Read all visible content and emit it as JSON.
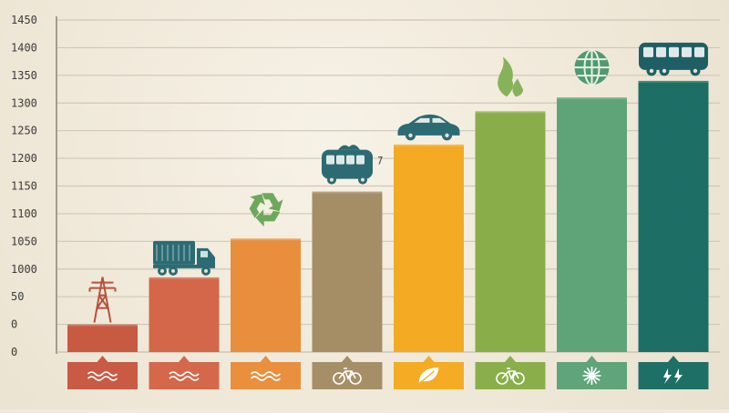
{
  "chart_data": {
    "type": "bar",
    "title": "",
    "xlabel": "",
    "ylabel": "",
    "y_tick_labels": [
      "0",
      "0",
      "50",
      "1000",
      "1050",
      "1100",
      "1150",
      "1200",
      "1250",
      "1300",
      "1350",
      "1400",
      "1450"
    ],
    "categories": [
      "power-grid",
      "truck",
      "recycling",
      "bus",
      "car",
      "flame",
      "globe",
      "electric-bus"
    ],
    "values": [
      1,
      2.7,
      4.1,
      5.8,
      7.5,
      8.7,
      9.2,
      9.8
    ],
    "value_unit": "gridline units (estimated)",
    "ylim": [
      0,
      12.3
    ],
    "grid": true,
    "legend": "none",
    "series_colors": [
      "#c95a43",
      "#d5674a",
      "#e98f3e",
      "#a68f67",
      "#f5ab23",
      "#8aaf4a",
      "#5fa47a",
      "#1e6f66"
    ],
    "icon_color": "#2c6b73",
    "badge_icons": [
      "waves-icon",
      "waves-icon",
      "waves-icon",
      "bicycle-icon",
      "leaf-icon",
      "bicycle-icon",
      "sunburst-icon",
      "lightning-drop-icon"
    ]
  }
}
